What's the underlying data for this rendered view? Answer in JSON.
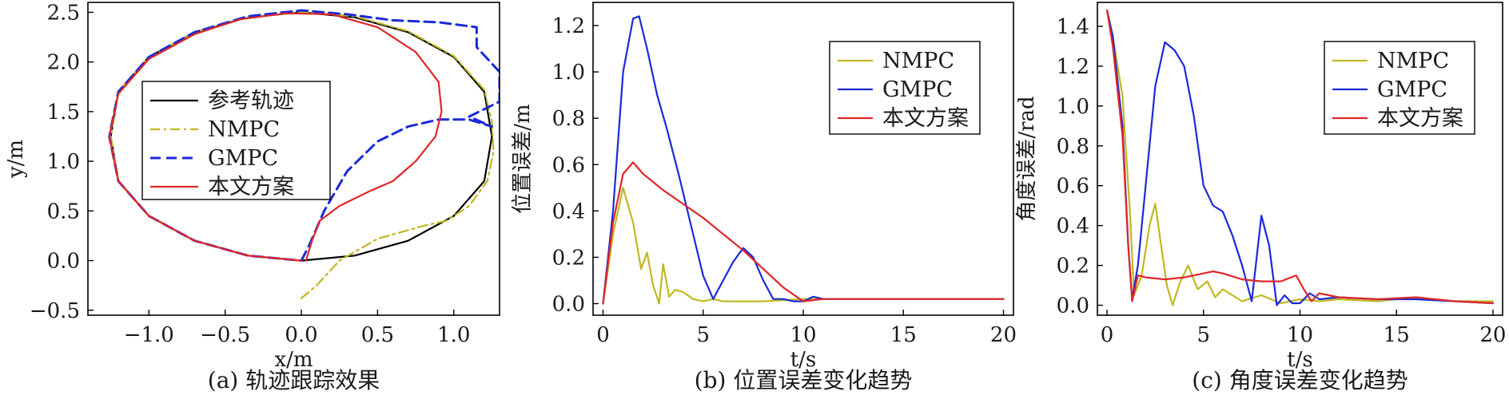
{
  "chart_data": [
    {
      "type": "line",
      "caption": "(a) 轨迹跟踪效果",
      "xlabel": "x/m",
      "ylabel": "y/m",
      "xlim": [
        -1.4,
        1.3
      ],
      "ylim": [
        -0.55,
        2.6
      ],
      "xticks": [
        "−1.0",
        "−0.5",
        "0.0",
        "0.5",
        "1.0"
      ],
      "xtick_values": [
        -1.0,
        -0.5,
        0.0,
        0.5,
        1.0
      ],
      "yticks": [
        "−0.5",
        "0.0",
        "0.5",
        "1.0",
        "1.5",
        "2.0",
        "2.5"
      ],
      "ytick_values": [
        -0.5,
        0.0,
        0.5,
        1.0,
        1.5,
        2.0,
        2.5
      ],
      "legend_position": "center-left",
      "series": [
        {
          "name": "参考轨迹",
          "color": "#000000",
          "style": "solid",
          "points": [
            [
              0.0,
              0.0
            ],
            [
              -0.35,
              0.05
            ],
            [
              -0.7,
              0.2
            ],
            [
              -1.0,
              0.45
            ],
            [
              -1.2,
              0.8
            ],
            [
              -1.25,
              1.25
            ],
            [
              -1.2,
              1.7
            ],
            [
              -1.0,
              2.05
            ],
            [
              -0.7,
              2.3
            ],
            [
              -0.35,
              2.45
            ],
            [
              0.0,
              2.5
            ],
            [
              0.35,
              2.45
            ],
            [
              0.7,
              2.3
            ],
            [
              1.0,
              2.05
            ],
            [
              1.2,
              1.7
            ],
            [
              1.25,
              1.25
            ],
            [
              1.2,
              0.8
            ],
            [
              1.0,
              0.45
            ],
            [
              0.7,
              0.2
            ],
            [
              0.35,
              0.05
            ],
            [
              0.0,
              0.0
            ]
          ]
        },
        {
          "name": "NMPC",
          "color": "#c0b820",
          "style": "dashdot",
          "points": [
            [
              0.0,
              -0.38
            ],
            [
              0.1,
              -0.25
            ],
            [
              0.25,
              0.0
            ],
            [
              0.5,
              0.22
            ],
            [
              0.8,
              0.35
            ],
            [
              0.95,
              0.4
            ],
            [
              1.1,
              0.55
            ],
            [
              1.22,
              0.8
            ],
            [
              1.26,
              1.1
            ],
            [
              1.25,
              1.4
            ],
            [
              1.2,
              1.72
            ],
            [
              1.0,
              2.06
            ],
            [
              0.7,
              2.31
            ],
            [
              0.35,
              2.46
            ],
            [
              0.0,
              2.5
            ],
            [
              -0.35,
              2.45
            ],
            [
              -0.7,
              2.3
            ],
            [
              -1.0,
              2.05
            ],
            [
              -1.2,
              1.7
            ],
            [
              -1.25,
              1.25
            ],
            [
              -1.2,
              0.8
            ],
            [
              -1.0,
              0.45
            ],
            [
              -0.7,
              0.2
            ],
            [
              -0.35,
              0.05
            ],
            [
              0.0,
              0.0
            ]
          ]
        },
        {
          "name": "GMPC",
          "color": "#1a2ad8",
          "style": "dashed",
          "points": [
            [
              0.0,
              0.0
            ],
            [
              0.05,
              0.15
            ],
            [
              0.15,
              0.5
            ],
            [
              0.3,
              0.9
            ],
            [
              0.5,
              1.2
            ],
            [
              0.7,
              1.35
            ],
            [
              0.9,
              1.42
            ],
            [
              1.1,
              1.42
            ],
            [
              1.25,
              1.35
            ],
            [
              1.1,
              1.45
            ],
            [
              1.3,
              1.6
            ],
            [
              1.3,
              1.9
            ],
            [
              1.15,
              2.15
            ],
            [
              1.15,
              2.35
            ],
            [
              0.9,
              2.4
            ],
            [
              0.6,
              2.42
            ],
            [
              0.3,
              2.48
            ],
            [
              0.0,
              2.52
            ],
            [
              -0.35,
              2.46
            ],
            [
              -0.7,
              2.3
            ],
            [
              -1.0,
              2.05
            ],
            [
              -1.2,
              1.7
            ],
            [
              -1.26,
              1.25
            ],
            [
              -1.2,
              0.8
            ],
            [
              -1.0,
              0.45
            ],
            [
              -0.7,
              0.2
            ],
            [
              -0.35,
              0.05
            ],
            [
              0.0,
              0.0
            ]
          ]
        },
        {
          "name": "本文方案",
          "color": "#e0262a",
          "style": "solid",
          "points": [
            [
              0.03,
              0.0
            ],
            [
              0.07,
              0.2
            ],
            [
              0.12,
              0.4
            ],
            [
              0.25,
              0.55
            ],
            [
              0.45,
              0.7
            ],
            [
              0.6,
              0.8
            ],
            [
              0.75,
              1.0
            ],
            [
              0.88,
              1.25
            ],
            [
              0.92,
              1.5
            ],
            [
              0.9,
              1.8
            ],
            [
              0.75,
              2.1
            ],
            [
              0.5,
              2.35
            ],
            [
              0.2,
              2.48
            ],
            [
              -0.1,
              2.49
            ],
            [
              -0.4,
              2.43
            ],
            [
              -0.7,
              2.28
            ],
            [
              -1.0,
              2.03
            ],
            [
              -1.2,
              1.68
            ],
            [
              -1.26,
              1.25
            ],
            [
              -1.2,
              0.8
            ],
            [
              -1.0,
              0.45
            ],
            [
              -0.7,
              0.2
            ],
            [
              -0.35,
              0.05
            ],
            [
              0.0,
              0.0
            ]
          ]
        }
      ]
    },
    {
      "type": "line",
      "caption": "(b) 位置误差变化趋势",
      "xlabel": "t/s",
      "ylabel": "位置误差/m",
      "xlim": [
        -0.5,
        20.5
      ],
      "ylim": [
        -0.05,
        1.3
      ],
      "xticks": [
        "0",
        "5",
        "10",
        "15",
        "20"
      ],
      "xtick_values": [
        0,
        5,
        10,
        15,
        20
      ],
      "yticks": [
        "0.0",
        "0.2",
        "0.4",
        "0.6",
        "0.8",
        "1.0",
        "1.2"
      ],
      "ytick_values": [
        0.0,
        0.2,
        0.4,
        0.6,
        0.8,
        1.0,
        1.2
      ],
      "legend_position": "top-right",
      "series": [
        {
          "name": "NMPC",
          "color": "#c0b820",
          "x": [
            0,
            0.5,
            1.0,
            1.5,
            1.9,
            2.2,
            2.5,
            2.8,
            3.0,
            3.3,
            3.6,
            4.0,
            4.5,
            5.0,
            5.5,
            6,
            8,
            10,
            12,
            15,
            18,
            20
          ],
          "y": [
            0.0,
            0.3,
            0.5,
            0.35,
            0.15,
            0.22,
            0.08,
            0.0,
            0.17,
            0.03,
            0.06,
            0.05,
            0.02,
            0.01,
            0.02,
            0.01,
            0.01,
            0.02,
            0.02,
            0.02,
            0.02,
            0.02
          ]
        },
        {
          "name": "GMPC",
          "color": "#1a2ad8",
          "x": [
            0,
            0.5,
            1.0,
            1.5,
            1.8,
            2.2,
            2.7,
            3.2,
            3.8,
            4.5,
            5.0,
            5.5,
            6.0,
            6.5,
            7.0,
            7.5,
            8.0,
            8.5,
            9.0,
            9.5,
            10,
            10.5,
            11,
            12,
            14,
            16,
            18,
            20
          ],
          "y": [
            0.0,
            0.4,
            1.0,
            1.23,
            1.24,
            1.1,
            0.9,
            0.75,
            0.55,
            0.3,
            0.12,
            0.02,
            0.1,
            0.18,
            0.24,
            0.2,
            0.1,
            0.02,
            0.02,
            0.01,
            0.01,
            0.03,
            0.02,
            0.02,
            0.02,
            0.02,
            0.02,
            0.02
          ]
        },
        {
          "name": "本文方案",
          "color": "#e0262a",
          "x": [
            0,
            0.5,
            1.0,
            1.5,
            2.0,
            3.0,
            4.0,
            5.0,
            6.0,
            7.0,
            8.0,
            9.0,
            10,
            11,
            12,
            14,
            16,
            18,
            20
          ],
          "y": [
            0.0,
            0.35,
            0.56,
            0.61,
            0.56,
            0.49,
            0.43,
            0.37,
            0.3,
            0.23,
            0.15,
            0.07,
            0.01,
            0.02,
            0.02,
            0.02,
            0.02,
            0.02,
            0.02
          ]
        }
      ]
    },
    {
      "type": "line",
      "caption": "(c) 角度误差变化趋势",
      "xlabel": "t/s",
      "ylabel": "角度误差/rad",
      "xlim": [
        -0.5,
        20.5
      ],
      "ylim": [
        -0.05,
        1.52
      ],
      "xticks": [
        "0",
        "5",
        "10",
        "15",
        "20"
      ],
      "xtick_values": [
        0,
        5,
        10,
        15,
        20
      ],
      "yticks": [
        "0.0",
        "0.2",
        "0.4",
        "0.6",
        "0.8",
        "1.0",
        "1.2",
        "1.4"
      ],
      "ytick_values": [
        0.0,
        0.2,
        0.4,
        0.6,
        0.8,
        1.0,
        1.2,
        1.4
      ],
      "legend_position": "top-right",
      "series": [
        {
          "name": "NMPC",
          "color": "#c0b820",
          "x": [
            0,
            0.3,
            0.8,
            1.2,
            1.4,
            1.8,
            2.2,
            2.5,
            2.8,
            3.1,
            3.4,
            3.8,
            4.2,
            4.7,
            5.2,
            5.6,
            6.0,
            7,
            8,
            9,
            10,
            11,
            12,
            14,
            16,
            18,
            20
          ],
          "y": [
            1.48,
            1.35,
            1.05,
            0.45,
            0.05,
            0.15,
            0.4,
            0.51,
            0.3,
            0.1,
            0.0,
            0.12,
            0.2,
            0.08,
            0.12,
            0.04,
            0.08,
            0.02,
            0.05,
            0.01,
            0.03,
            0.02,
            0.03,
            0.02,
            0.04,
            0.02,
            0.02
          ]
        },
        {
          "name": "GMPC",
          "color": "#1a2ad8",
          "x": [
            0,
            0.3,
            0.8,
            1.1,
            1.3,
            1.6,
            2.0,
            2.5,
            3.0,
            3.5,
            4.0,
            4.5,
            5.0,
            5.5,
            6.0,
            6.5,
            7.0,
            7.5,
            8.0,
            8.4,
            8.8,
            9.2,
            9.6,
            10,
            10.5,
            11,
            12,
            14,
            16,
            18,
            20
          ],
          "y": [
            1.48,
            1.35,
            0.9,
            0.3,
            0.03,
            0.2,
            0.6,
            1.1,
            1.32,
            1.28,
            1.2,
            0.95,
            0.6,
            0.5,
            0.47,
            0.35,
            0.2,
            0.02,
            0.45,
            0.3,
            0.0,
            0.05,
            0.01,
            0.01,
            0.06,
            0.03,
            0.04,
            0.03,
            0.03,
            0.02,
            0.01
          ]
        },
        {
          "name": "本文方案",
          "color": "#e0262a",
          "x": [
            0,
            0.3,
            0.8,
            1.1,
            1.3,
            1.6,
            2.0,
            3.0,
            4.0,
            5.0,
            5.5,
            6.0,
            7.0,
            8.0,
            9.0,
            9.8,
            10.2,
            10.6,
            11,
            12,
            14,
            16,
            18,
            20
          ],
          "y": [
            1.48,
            1.3,
            0.85,
            0.3,
            0.02,
            0.15,
            0.14,
            0.13,
            0.14,
            0.16,
            0.17,
            0.16,
            0.13,
            0.12,
            0.12,
            0.15,
            0.08,
            0.02,
            0.06,
            0.04,
            0.03,
            0.04,
            0.02,
            0.01
          ]
        }
      ]
    }
  ]
}
